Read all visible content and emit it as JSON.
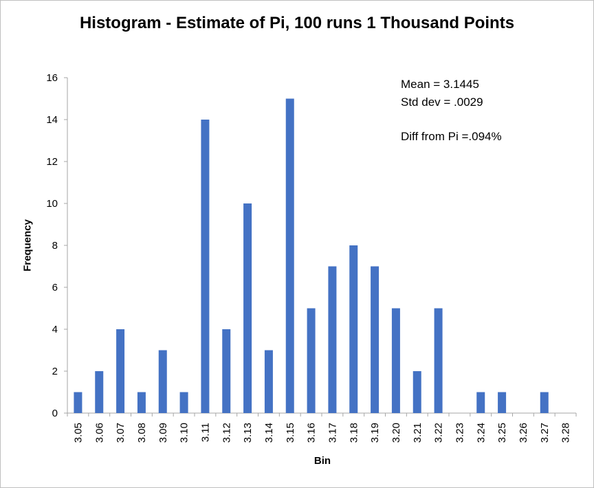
{
  "chart_data": {
    "type": "bar",
    "title": "Histogram - Estimate of Pi, 100 runs 1 Thousand Points",
    "xlabel": "Bin",
    "ylabel": "Frequency",
    "ylim": [
      0,
      16
    ],
    "yticks": [
      "0",
      "2",
      "4",
      "6",
      "8",
      "10",
      "12",
      "14",
      "16"
    ],
    "categories": [
      "3.05",
      "3.06",
      "3.07",
      "3.08",
      "3.09",
      "3.10",
      "3.11",
      "3.12",
      "3.13",
      "3.14",
      "3.15",
      "3.16",
      "3.17",
      "3.18",
      "3.19",
      "3.20",
      "3.21",
      "3.22",
      "3.23",
      "3.24",
      "3.25",
      "3.26",
      "3.27",
      "3.28"
    ],
    "values": [
      1,
      2,
      4,
      1,
      3,
      1,
      14,
      4,
      10,
      3,
      15,
      5,
      7,
      8,
      7,
      5,
      2,
      5,
      0,
      1,
      1,
      0,
      1,
      0
    ],
    "bar_color": "#4472c4",
    "grid": false,
    "annotations": [
      "Mean = 3.1445",
      "Std dev = .0029",
      "Diff from Pi =.094%"
    ]
  }
}
